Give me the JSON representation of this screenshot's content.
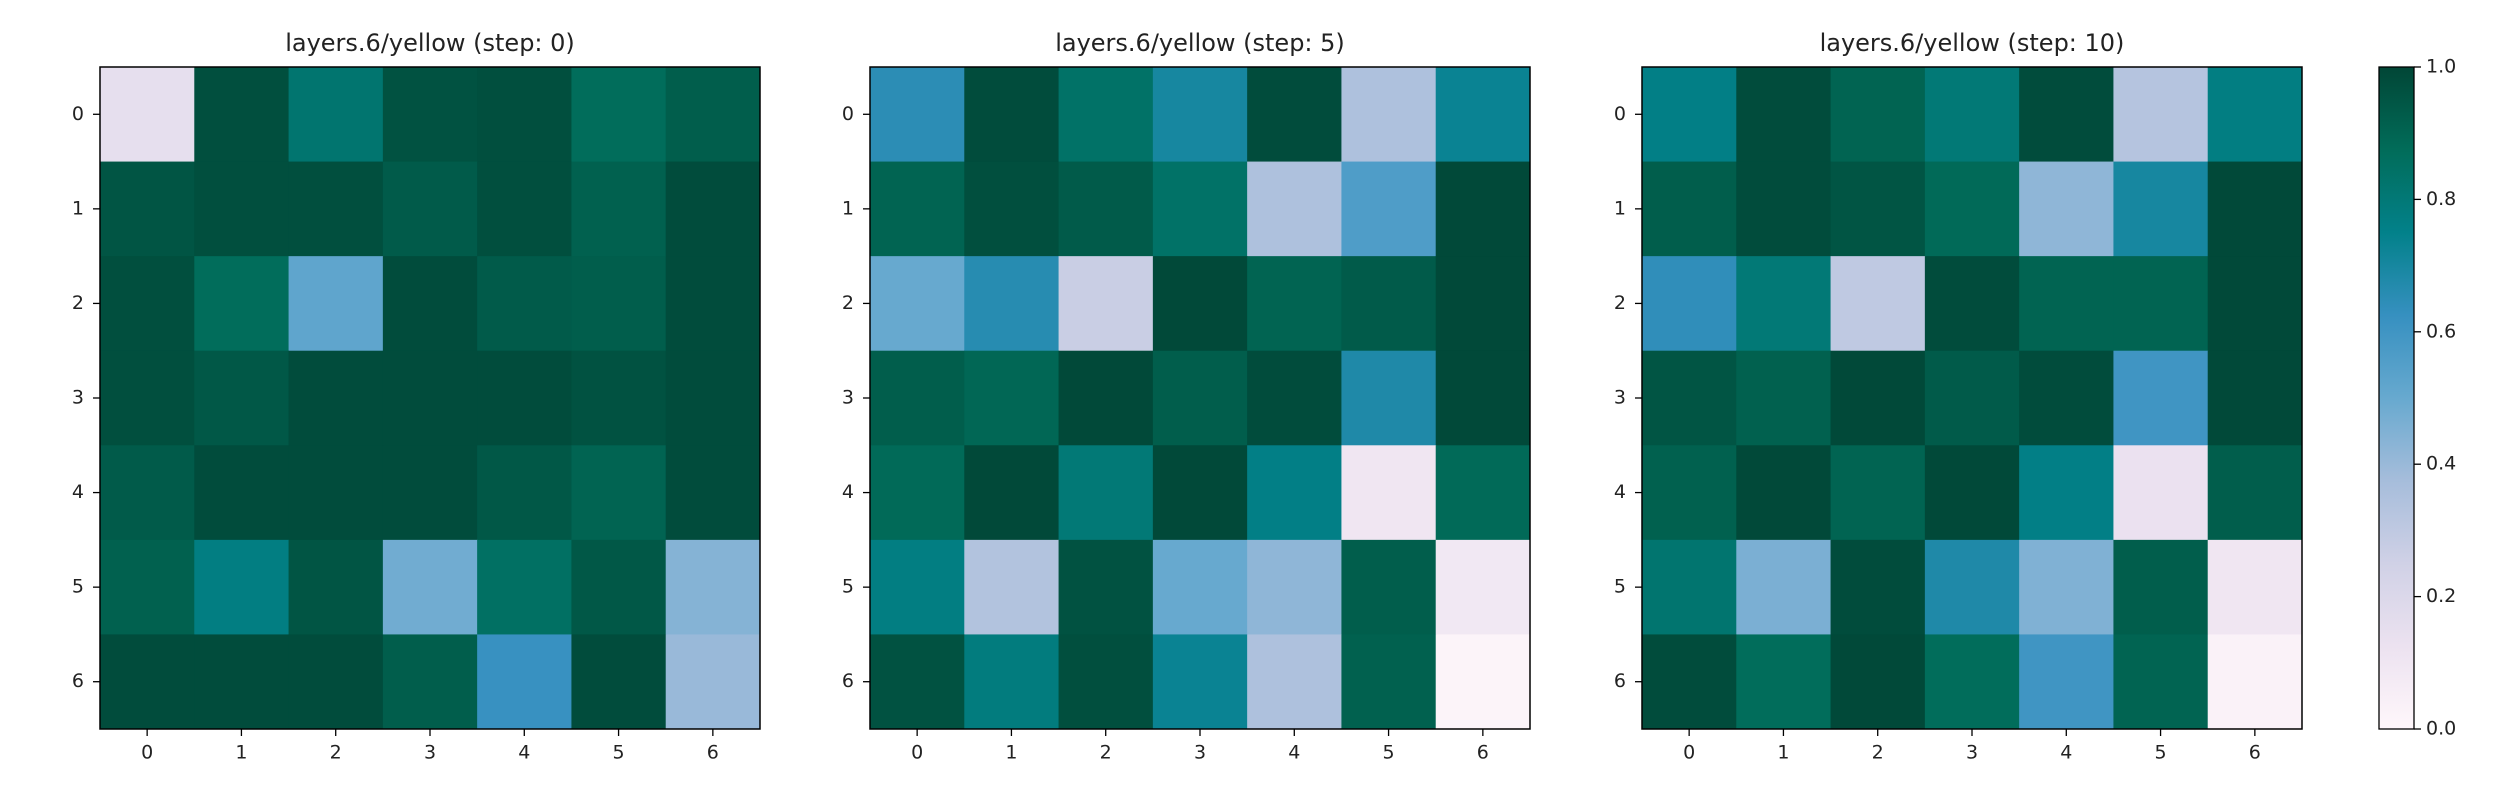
{
  "chart_data": [
    {
      "type": "heatmap",
      "title": "layers.6/yellow (step: 0)",
      "colormap": "PuBuGn",
      "clim": [
        0,
        1
      ],
      "xlim": [
        -0.5,
        6.5
      ],
      "ylim": [
        6.5,
        -0.5
      ],
      "xticks": [
        0,
        1,
        2,
        3,
        4,
        5,
        6
      ],
      "yticks": [
        0,
        1,
        2,
        3,
        4,
        5,
        6
      ],
      "values": [
        [
          0.15,
          0.97,
          0.82,
          0.96,
          0.97,
          0.87,
          0.92
        ],
        [
          0.95,
          0.97,
          0.97,
          0.93,
          0.97,
          0.91,
          0.98
        ],
        [
          0.97,
          0.87,
          0.52,
          0.98,
          0.93,
          0.92,
          0.98
        ],
        [
          0.97,
          0.94,
          0.98,
          0.98,
          0.98,
          0.96,
          0.98
        ],
        [
          0.93,
          0.98,
          0.98,
          0.98,
          0.94,
          0.9,
          0.98
        ],
        [
          0.91,
          0.77,
          0.95,
          0.48,
          0.85,
          0.94,
          0.44
        ],
        [
          0.98,
          0.98,
          0.98,
          0.92,
          0.62,
          0.98,
          0.4
        ]
      ]
    },
    {
      "type": "heatmap",
      "title": "layers.6/yellow (step: 5)",
      "colormap": "PuBuGn",
      "clim": [
        0,
        1
      ],
      "xlim": [
        -0.5,
        6.5
      ],
      "ylim": [
        6.5,
        -0.5
      ],
      "xticks": [
        0,
        1,
        2,
        3,
        4,
        5,
        6
      ],
      "yticks": [
        0,
        1,
        2,
        3,
        4,
        5,
        6
      ],
      "values": [
        [
          0.65,
          0.98,
          0.84,
          0.7,
          0.98,
          0.35,
          0.73
        ],
        [
          0.9,
          0.97,
          0.93,
          0.84,
          0.35,
          0.56,
          0.99
        ],
        [
          0.5,
          0.66,
          0.27,
          0.99,
          0.9,
          0.93,
          0.99
        ],
        [
          0.92,
          0.89,
          0.99,
          0.92,
          0.98,
          0.68,
          0.99
        ],
        [
          0.88,
          0.99,
          0.8,
          0.99,
          0.76,
          0.1,
          0.88
        ],
        [
          0.77,
          0.34,
          0.96,
          0.5,
          0.42,
          0.92,
          0.09
        ],
        [
          0.96,
          0.78,
          0.97,
          0.73,
          0.35,
          0.91,
          0.02
        ]
      ]
    },
    {
      "type": "heatmap",
      "title": "layers.6/yellow (step: 10)",
      "colormap": "PuBuGn",
      "clim": [
        0,
        1
      ],
      "xlim": [
        -0.5,
        6.5
      ],
      "ylim": [
        6.5,
        -0.5
      ],
      "xticks": [
        0,
        1,
        2,
        3,
        4,
        5,
        6
      ],
      "yticks": [
        0,
        1,
        2,
        3,
        4,
        5,
        6
      ],
      "values": [
        [
          0.76,
          0.98,
          0.9,
          0.8,
          0.98,
          0.33,
          0.77
        ],
        [
          0.92,
          0.98,
          0.95,
          0.88,
          0.42,
          0.7,
          0.99
        ],
        [
          0.64,
          0.8,
          0.3,
          0.98,
          0.9,
          0.9,
          0.99
        ],
        [
          0.95,
          0.91,
          0.99,
          0.93,
          0.98,
          0.6,
          0.99
        ],
        [
          0.91,
          0.99,
          0.9,
          0.99,
          0.76,
          0.13,
          0.92
        ],
        [
          0.82,
          0.46,
          0.98,
          0.68,
          0.45,
          0.92,
          0.1
        ],
        [
          0.98,
          0.87,
          0.99,
          0.87,
          0.6,
          0.9,
          0.03
        ]
      ],
      "colorbar": true,
      "cticks": [
        {
          "value": 0,
          "label": "0.0"
        },
        0.2,
        0.4,
        0.6,
        0.8,
        {
          "value": 1,
          "label": "1.0"
        }
      ]
    }
  ]
}
